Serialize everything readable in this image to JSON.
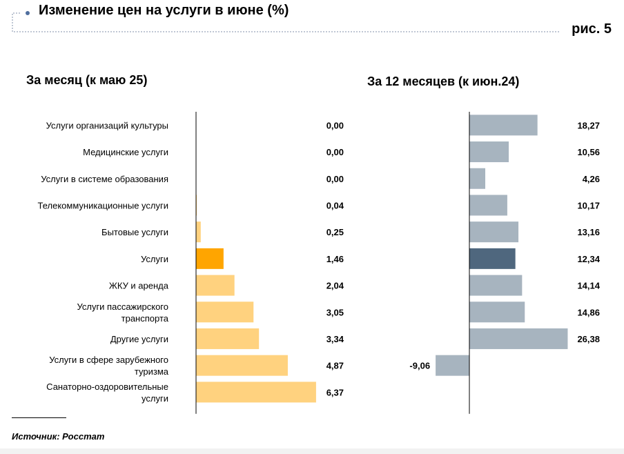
{
  "title": "Изменение цен на услуги в июне (%)",
  "figure_label": "рис. 5",
  "source": "Источник: Росстат",
  "colors": {
    "left_bar": "#FFD27F",
    "left_highlight": "#FFA500",
    "right_bar": "#A7B4BF",
    "right_highlight": "#4F677E",
    "accent": "#4F6E9E"
  },
  "chart_data": [
    {
      "type": "bar",
      "orientation": "horizontal",
      "title": "За месяц (к маю 25)",
      "categories": [
        "Услуги организаций культуры",
        "Медицинские услуги",
        "Услуги в системе образования",
        "Телекоммуникационные услуги",
        "Бытовые услуги",
        "Услуги",
        "ЖКУ и аренда",
        "Услуги пассажирского транспорта",
        "Другие услуги",
        "Услуги в сфере зарубежного туризма",
        "Санаторно-оздоровительные услуги"
      ],
      "values": [
        0.0,
        0.0,
        0.0,
        0.04,
        0.25,
        1.46,
        2.04,
        3.05,
        3.34,
        4.87,
        6.37
      ],
      "labels": [
        "0,00",
        "0,00",
        "0,00",
        "0,04",
        "0,25",
        "1,46",
        "2,04",
        "3,05",
        "3,34",
        "4,87",
        "6,37"
      ],
      "highlight": "Услуги",
      "xlim": [
        0,
        6.5
      ],
      "grid": false
    },
    {
      "type": "bar",
      "orientation": "horizontal",
      "title": "За 12 месяцев (к июн.24)",
      "categories": [
        "Услуги организаций культуры",
        "Медицинские услуги",
        "Услуги в системе образования",
        "Телекоммуникационные услуги",
        "Бытовые услуги",
        "Услуги",
        "ЖКУ и аренда",
        "Услуги пассажирского транспорта",
        "Другие услуги",
        "Услуги в сфере зарубежного туризма",
        "Санаторно-оздоровительные услуги"
      ],
      "values": [
        18.27,
        10.56,
        4.26,
        10.17,
        13.16,
        12.34,
        14.14,
        14.86,
        26.38,
        -9.06,
        null
      ],
      "labels": [
        "18,27",
        "10,56",
        "4,26",
        "10,17",
        "13,16",
        "12,34",
        "14,14",
        "14,86",
        "26,38",
        "-9,06",
        ""
      ],
      "highlight": "Услуги",
      "grid": false
    }
  ]
}
